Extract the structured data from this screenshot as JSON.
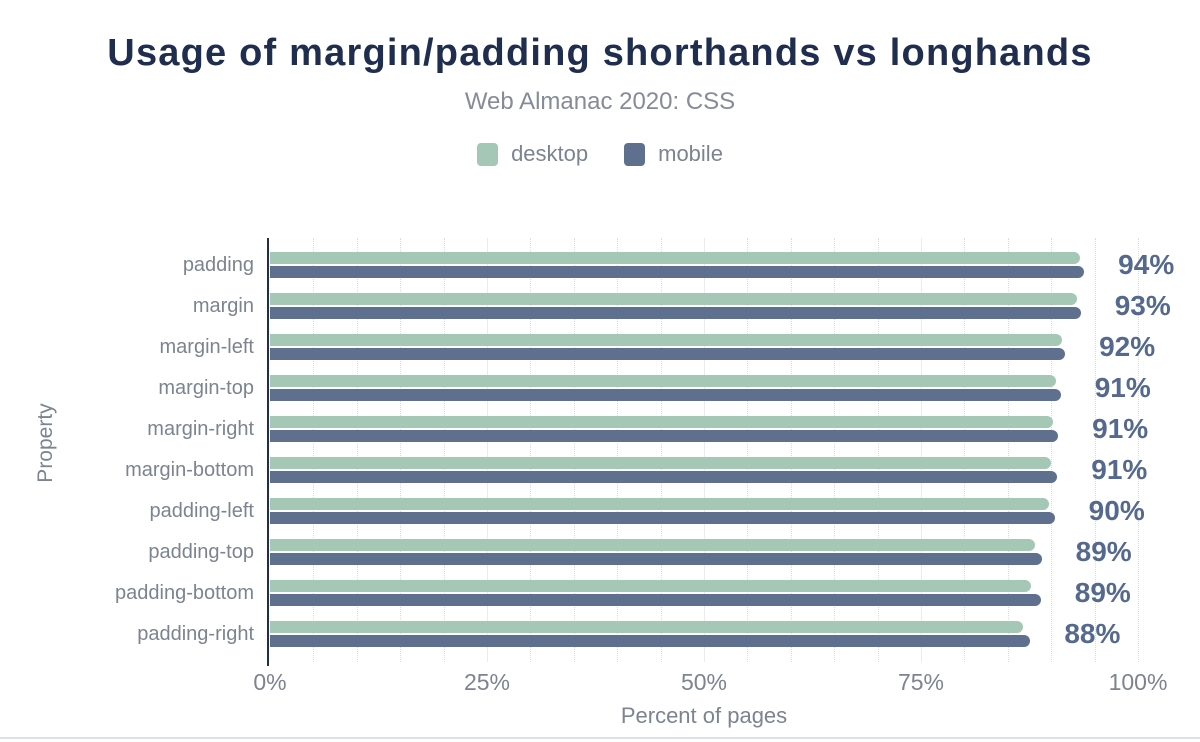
{
  "header": {
    "title": "Usage of margin/padding shorthands vs longhands",
    "subtitle": "Web Almanac 2020: CSS"
  },
  "legend": {
    "items": [
      {
        "label": "desktop",
        "color": "#a4c8b5"
      },
      {
        "label": "mobile",
        "color": "#5e708e"
      }
    ]
  },
  "colors": {
    "title_text": "#1f2d4e",
    "muted_text": "#7c8391",
    "value_label_text": "#55698e",
    "axis_line": "#1f2d4e",
    "desktop_bar": "#a4c8b5",
    "mobile_bar": "#5e708e"
  },
  "chart_data": {
    "type": "bar",
    "orientation": "horizontal",
    "title": "Usage of margin/padding shorthands vs longhands",
    "subtitle": "Web Almanac 2020: CSS",
    "xlabel": "Percent of pages",
    "ylabel": "Property",
    "xlim": [
      0,
      100
    ],
    "x_ticks": [
      "0%",
      "25%",
      "50%",
      "75%",
      "100%"
    ],
    "grid": "vertical dotted minor lines every 5%, light solid at 25/50/75%",
    "legend_position": "top",
    "categories": [
      "padding",
      "margin",
      "margin-left",
      "margin-top",
      "margin-right",
      "margin-bottom",
      "padding-left",
      "padding-top",
      "padding-bottom",
      "padding-right"
    ],
    "series": [
      {
        "name": "desktop",
        "color": "#a4c8b5",
        "values": [
          93.3,
          93.0,
          91.2,
          90.6,
          90.2,
          90.0,
          89.8,
          88.1,
          87.7,
          86.8
        ]
      },
      {
        "name": "mobile",
        "color": "#5e708e",
        "values": [
          93.8,
          93.4,
          91.6,
          91.1,
          90.8,
          90.7,
          90.4,
          88.9,
          88.8,
          87.6
        ]
      }
    ],
    "bar_labels": [
      "94%",
      "93%",
      "92%",
      "91%",
      "91%",
      "91%",
      "90%",
      "89%",
      "89%",
      "88%"
    ],
    "bar_label_series": "mobile"
  }
}
